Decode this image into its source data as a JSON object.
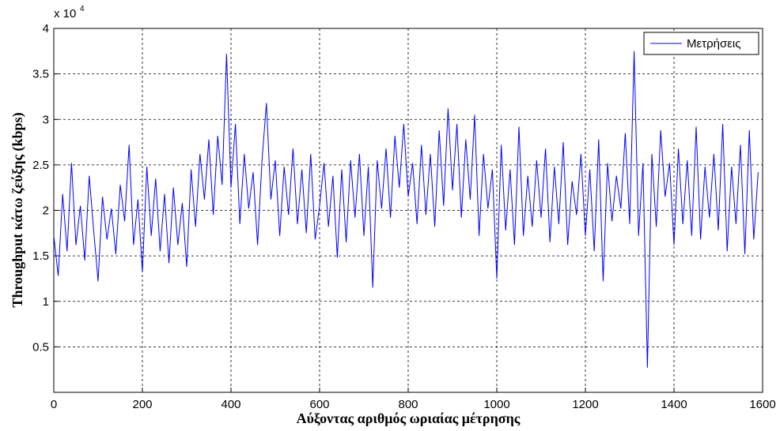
{
  "chart_data": {
    "type": "line",
    "xlabel": "Αύξοντας αριθμός ωριαίας μέτρησης",
    "ylabel": "Throughput κάτω ζεύξης (kbps)",
    "axis_multiplier": "x 10",
    "axis_multiplier_exponent": "4",
    "x": [
      0,
      10,
      20,
      30,
      40,
      50,
      60,
      70,
      80,
      90,
      100,
      110,
      120,
      130,
      140,
      150,
      160,
      170,
      180,
      190,
      200,
      210,
      220,
      230,
      240,
      250,
      260,
      270,
      280,
      290,
      300,
      310,
      320,
      330,
      340,
      350,
      360,
      370,
      380,
      390,
      400,
      410,
      420,
      430,
      440,
      450,
      460,
      470,
      480,
      490,
      500,
      510,
      520,
      530,
      540,
      550,
      560,
      570,
      580,
      590,
      600,
      610,
      620,
      630,
      640,
      650,
      660,
      670,
      680,
      690,
      700,
      710,
      720,
      730,
      740,
      750,
      760,
      770,
      780,
      790,
      800,
      810,
      820,
      830,
      840,
      850,
      860,
      870,
      880,
      890,
      900,
      910,
      920,
      930,
      940,
      950,
      960,
      970,
      980,
      990,
      1000,
      1010,
      1020,
      1030,
      1040,
      1050,
      1060,
      1070,
      1080,
      1090,
      1100,
      1110,
      1120,
      1130,
      1140,
      1150,
      1160,
      1170,
      1180,
      1190,
      1200,
      1210,
      1220,
      1230,
      1240,
      1250,
      1260,
      1270,
      1280,
      1290,
      1300,
      1310,
      1320,
      1330,
      1340,
      1350,
      1360,
      1370,
      1380,
      1390,
      1400,
      1410,
      1420,
      1430,
      1440,
      1450,
      1460,
      1470,
      1480,
      1490,
      1500,
      1510,
      1520,
      1530,
      1540,
      1550,
      1560,
      1570,
      1580,
      1590
    ],
    "series": [
      {
        "name": "Μετρήσεις",
        "color": "#0000ff",
        "values": [
          1.72,
          1.28,
          2.18,
          1.55,
          2.52,
          1.62,
          2.05,
          1.45,
          2.38,
          1.78,
          1.22,
          2.15,
          1.68,
          2.02,
          1.52,
          2.28,
          1.88,
          2.72,
          1.62,
          2.12,
          1.32,
          2.48,
          1.72,
          2.35,
          1.55,
          2.18,
          1.42,
          2.25,
          1.62,
          2.08,
          1.38,
          2.45,
          1.82,
          2.62,
          2.12,
          2.78,
          1.95,
          2.82,
          2.28,
          3.72,
          2.25,
          2.95,
          1.85,
          2.62,
          2.02,
          2.42,
          1.62,
          2.55,
          3.18,
          2.12,
          2.55,
          1.72,
          2.48,
          1.95,
          2.68,
          1.85,
          2.45,
          1.75,
          2.62,
          1.68,
          2.05,
          2.52,
          1.82,
          2.38,
          1.48,
          2.45,
          1.65,
          2.55,
          1.92,
          2.62,
          1.72,
          2.48,
          1.15,
          2.55,
          2.02,
          2.68,
          1.92,
          2.82,
          2.25,
          2.95,
          2.15,
          2.52,
          1.85,
          2.72,
          1.95,
          2.62,
          1.82,
          2.88,
          2.05,
          3.12,
          2.22,
          2.95,
          1.92,
          2.78,
          2.12,
          3.05,
          1.72,
          2.62,
          2.02,
          2.45,
          1.25,
          2.72,
          1.78,
          2.45,
          1.62,
          2.92,
          1.72,
          2.38,
          1.82,
          2.55,
          1.92,
          2.68,
          1.65,
          2.48,
          1.85,
          2.75,
          1.62,
          2.32,
          1.95,
          2.62,
          1.72,
          2.45,
          1.55,
          2.78,
          1.22,
          2.52,
          1.88,
          2.38,
          2.02,
          2.85,
          1.85,
          3.75,
          1.72,
          2.52,
          0.27,
          2.62,
          1.82,
          2.88,
          2.15,
          2.52,
          1.62,
          2.68,
          1.85,
          2.55,
          1.72,
          2.92,
          1.68,
          2.48,
          1.92,
          2.62,
          1.78,
          2.95,
          1.55,
          2.48,
          1.85,
          2.72,
          1.52,
          2.88,
          1.68,
          2.42
        ]
      }
    ],
    "xlim": [
      0,
      1600
    ],
    "xticks": [
      0,
      200,
      400,
      600,
      800,
      1000,
      1200,
      1400,
      1600
    ],
    "ylim": [
      0,
      4
    ],
    "yticks": [
      0.5,
      1,
      1.5,
      2,
      2.5,
      3,
      3.5,
      4
    ],
    "grid": true,
    "legend": "upper right"
  }
}
